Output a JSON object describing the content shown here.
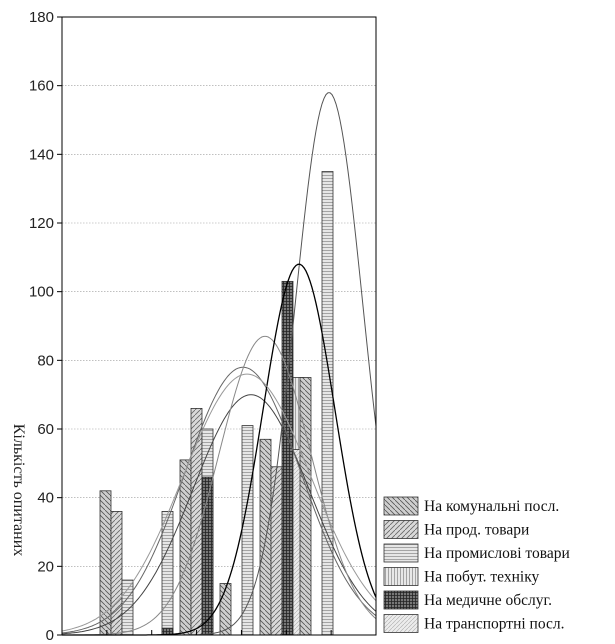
{
  "chart_data": {
    "type": "bar",
    "ylabel": "Кількість опитаних",
    "ylim": [
      0,
      180
    ],
    "yticks": [
      0,
      20,
      40,
      60,
      80,
      100,
      120,
      140,
      160,
      180
    ],
    "grid": true,
    "legend_position": "bottom-right",
    "groups": 6,
    "series": [
      {
        "name": "На комунальні посл.",
        "pattern": "diag-down",
        "values": [
          42,
          0,
          51,
          15,
          57,
          75
        ],
        "curve": {
          "peak": 70,
          "peak_group": 4.4,
          "sd": 1.45
        }
      },
      {
        "name": "На прод. товари",
        "pattern": "diag-up",
        "values": [
          36,
          0,
          66,
          0,
          49,
          0
        ],
        "curve": {
          "peak": 78,
          "peak_group": 4.2,
          "sd": 1.45
        }
      },
      {
        "name": "На промислові товари",
        "pattern": "hlines",
        "values": [
          16,
          36,
          60,
          61,
          0,
          135
        ],
        "curve": {
          "peak": 87,
          "peak_group": 4.75,
          "sd": 1.15
        }
      },
      {
        "name": "На побут. техніку",
        "pattern": "vlines",
        "values": [
          0,
          0,
          0,
          0,
          75,
          0
        ],
        "curve": {
          "peak": 158,
          "peak_group": 6.35,
          "sd": 0.85
        }
      },
      {
        "name": "На медичне обслуг.",
        "pattern": "cross",
        "values": [
          0,
          2,
          46,
          0,
          103,
          0
        ],
        "curve": {
          "peak": 108,
          "peak_group": 5.6,
          "sd": 0.9
        }
      },
      {
        "name": "На транспортні посл.",
        "pattern": "diag-fine",
        "values": [
          0,
          0,
          0,
          0,
          54,
          0
        ],
        "curve": {
          "peak": 76,
          "peak_group": 4.3,
          "sd": 1.6
        }
      }
    ]
  }
}
